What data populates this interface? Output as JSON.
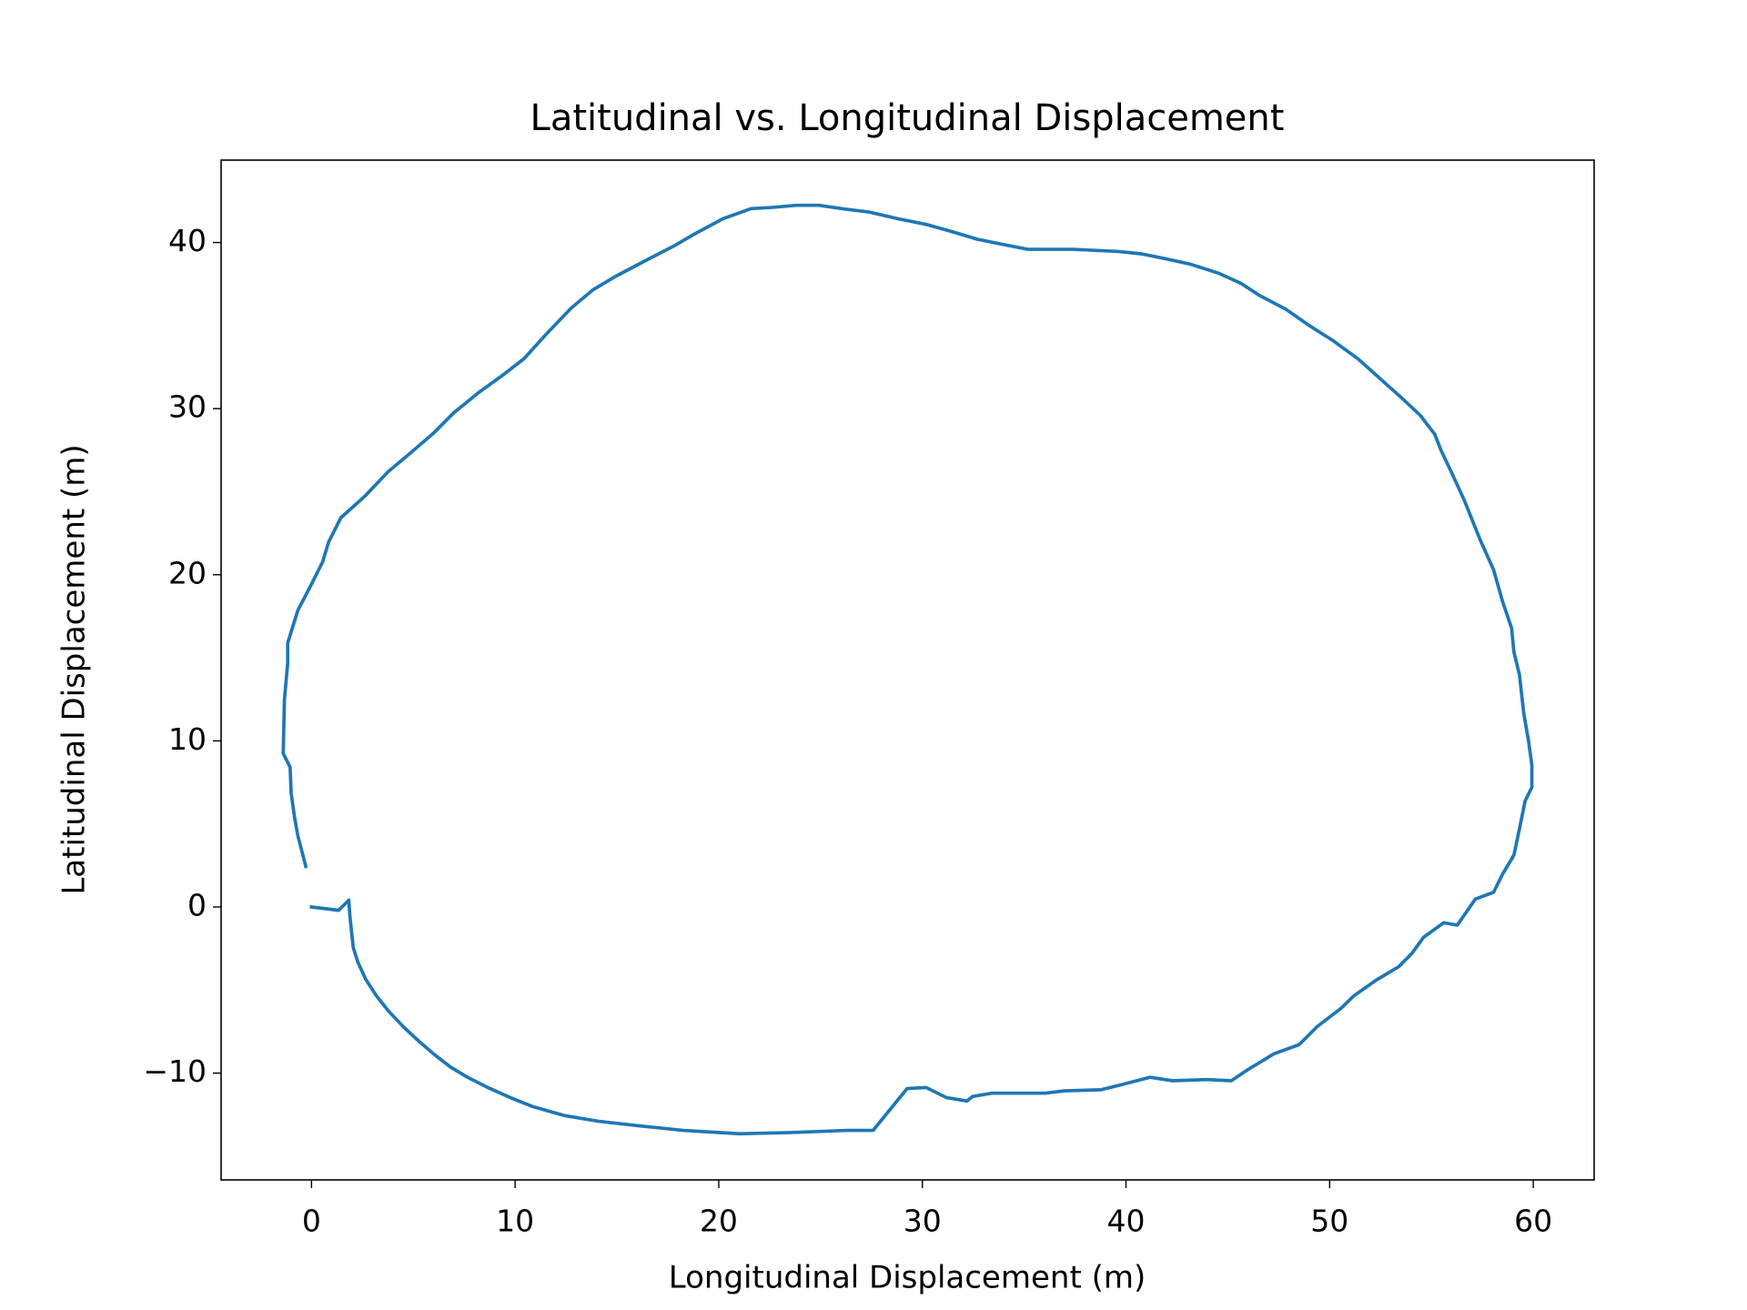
{
  "chart_data": {
    "type": "line",
    "title": "Latitudinal vs. Longitudinal Displacement",
    "x_label": "Longitudinal Displacement (m)",
    "y_label": "Latitudinal Displacement (m)",
    "color": "#1f77b4",
    "x": [
      0,
      1.33,
      1.83,
      1.89,
      2.05,
      2.28,
      2.66,
      3.16,
      3.77,
      4.5,
      5.27,
      6.05,
      6.83,
      7.66,
      8.66,
      9.77,
      10.88,
      12.43,
      14.1,
      16.04,
      18.26,
      21.03,
      23.53,
      26.3,
      27.58,
      29.25,
      30.19,
      31.19,
      32.19,
      32.46,
      33.41,
      36.02,
      36.96,
      38.79,
      39.9,
      41.18,
      42.29,
      43.96,
      45.17,
      46.0,
      47.28,
      48.5,
      49.39,
      50.55,
      51.17,
      52.28,
      53.39,
      54.05,
      54.61,
      55.6,
      56.27,
      57.16,
      58.05,
      58.49,
      59.05,
      59.32,
      59.6,
      59.93,
      59.93,
      59.77,
      59.54,
      59.32,
      59.05,
      58.94,
      58.49,
      58.05,
      57.38,
      56.6,
      55.99,
      55.49,
      55.16,
      54.44,
      53.55,
      52.5,
      51.39,
      50.17,
      48.95,
      47.84,
      46.56,
      45.62,
      44.51,
      43.12,
      41.84,
      40.73,
      39.62,
      37.4,
      35.18,
      34.07,
      32.69,
      31.58,
      30.19,
      28.8,
      27.41,
      26.03,
      24.92,
      23.81,
      22.59,
      21.59,
      20.2,
      18.76,
      17.81,
      16.31,
      14.93,
      13.82,
      12.76,
      11.54,
      10.43,
      9.43,
      8.21,
      6.99,
      5.99,
      4.83,
      3.77,
      2.61,
      1.44,
      0.83,
      0.55,
      -0.06,
      -0.67,
      -1.17,
      -1.17,
      -1.33,
      -1.39,
      -1.05,
      -1.0,
      -0.83,
      -0.67,
      -0.28
    ],
    "y": [
      0,
      -0.2,
      0.41,
      -0.61,
      -2.44,
      -3.33,
      -4.35,
      -5.3,
      -6.25,
      -7.2,
      -8.08,
      -8.9,
      -9.64,
      -10.25,
      -10.87,
      -11.48,
      -12.02,
      -12.56,
      -12.9,
      -13.17,
      -13.45,
      -13.65,
      -13.58,
      -13.45,
      -13.45,
      -10.93,
      -10.87,
      -11.48,
      -11.68,
      -11.41,
      -11.21,
      -11.21,
      -11.07,
      -11.0,
      -10.66,
      -10.25,
      -10.46,
      -10.39,
      -10.46,
      -9.78,
      -8.83,
      -8.29,
      -7.2,
      -6.11,
      -5.37,
      -4.41,
      -3.6,
      -2.78,
      -1.83,
      -0.95,
      -1.09,
      0.48,
      0.88,
      1.97,
      3.12,
      4.69,
      6.38,
      7.2,
      8.56,
      9.98,
      11.61,
      13.99,
      15.35,
      16.77,
      18.4,
      20.31,
      22.14,
      24.52,
      26.15,
      27.44,
      28.46,
      29.61,
      30.63,
      31.78,
      33.0,
      34.09,
      35.04,
      35.99,
      36.81,
      37.56,
      38.17,
      38.71,
      39.05,
      39.32,
      39.46,
      39.59,
      39.59,
      39.86,
      40.2,
      40.61,
      41.09,
      41.43,
      41.83,
      42.04,
      42.24,
      42.24,
      42.11,
      42.04,
      41.43,
      40.48,
      39.8,
      38.85,
      37.96,
      37.15,
      36.06,
      34.5,
      33.0,
      32.05,
      30.97,
      29.75,
      28.52,
      27.3,
      26.21,
      24.72,
      23.43,
      21.94,
      20.78,
      19.29,
      17.86,
      15.89,
      14.67,
      12.49,
      9.24,
      8.42,
      6.86,
      5.37,
      4.28,
      2.44
    ],
    "xlim": [
      -4.44,
      62.99
    ],
    "ylim": [
      -16.43,
      44.96
    ],
    "xticks": [
      0,
      10,
      20,
      30,
      40,
      50,
      60
    ],
    "yticks": [
      {
        "value": -10,
        "label": "−10"
      },
      0,
      10,
      20,
      30,
      40
    ]
  }
}
